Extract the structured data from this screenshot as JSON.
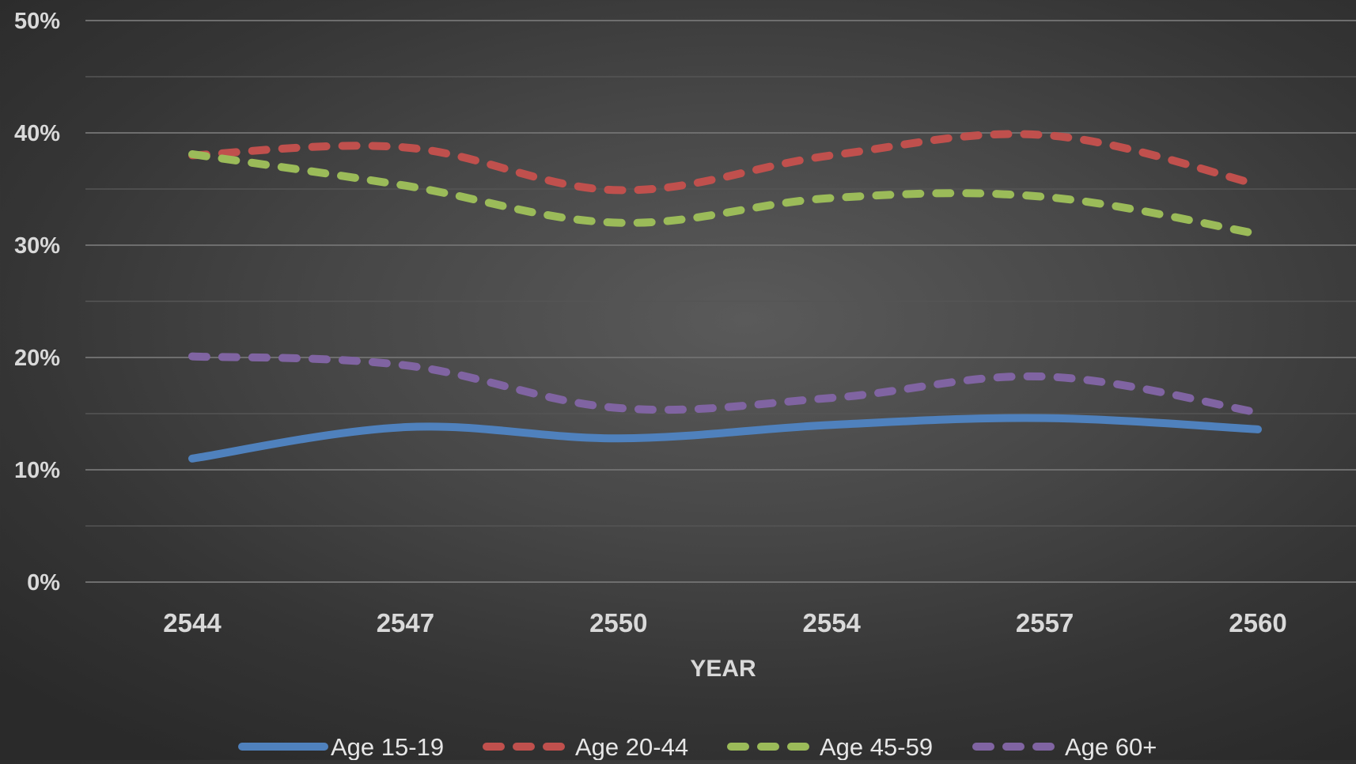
{
  "chart_data": {
    "type": "line",
    "title": "",
    "xlabel": "YEAR",
    "ylabel": "",
    "categories": [
      "2544",
      "2547",
      "2550",
      "2554",
      "2557",
      "2560"
    ],
    "ylim": [
      0,
      50
    ],
    "y_ticks": [
      "0%",
      "10%",
      "20%",
      "30%",
      "40%",
      "50%"
    ],
    "y_tick_values": [
      0,
      10,
      20,
      30,
      40,
      50
    ],
    "grid": true,
    "legend_position": "bottom",
    "series": [
      {
        "name": "Age 15-19",
        "values": [
          11.0,
          13.8,
          12.8,
          14.0,
          14.6,
          13.6
        ],
        "color": "#4f81bd",
        "style": "solid"
      },
      {
        "name": "Age 20-44",
        "values": [
          38.0,
          38.7,
          34.9,
          38.0,
          39.8,
          35.4
        ],
        "color": "#c0504d",
        "style": "dashed"
      },
      {
        "name": "Age 45-59",
        "values": [
          38.1,
          35.3,
          32.0,
          34.2,
          34.3,
          31.0
        ],
        "color": "#9bbb59",
        "style": "dashed"
      },
      {
        "name": "Age 60+",
        "values": [
          20.1,
          19.3,
          15.5,
          16.4,
          18.3,
          15.1
        ],
        "color": "#8064a2",
        "style": "dashed"
      }
    ]
  }
}
